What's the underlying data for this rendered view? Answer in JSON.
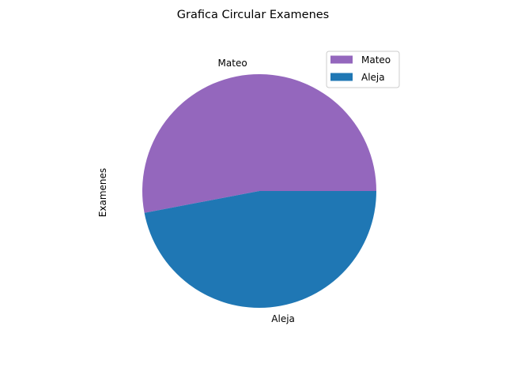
{
  "chart_data": {
    "type": "pie",
    "title": "Grafica Circular Examenes",
    "ylabel": "Examenes",
    "categories": [
      "Mateo",
      "Aleja"
    ],
    "values": [
      53,
      47
    ],
    "colors": [
      "#9467bd",
      "#1f77b4"
    ],
    "legend": {
      "position": "upper right",
      "entries": [
        "Mateo",
        "Aleja"
      ]
    }
  }
}
